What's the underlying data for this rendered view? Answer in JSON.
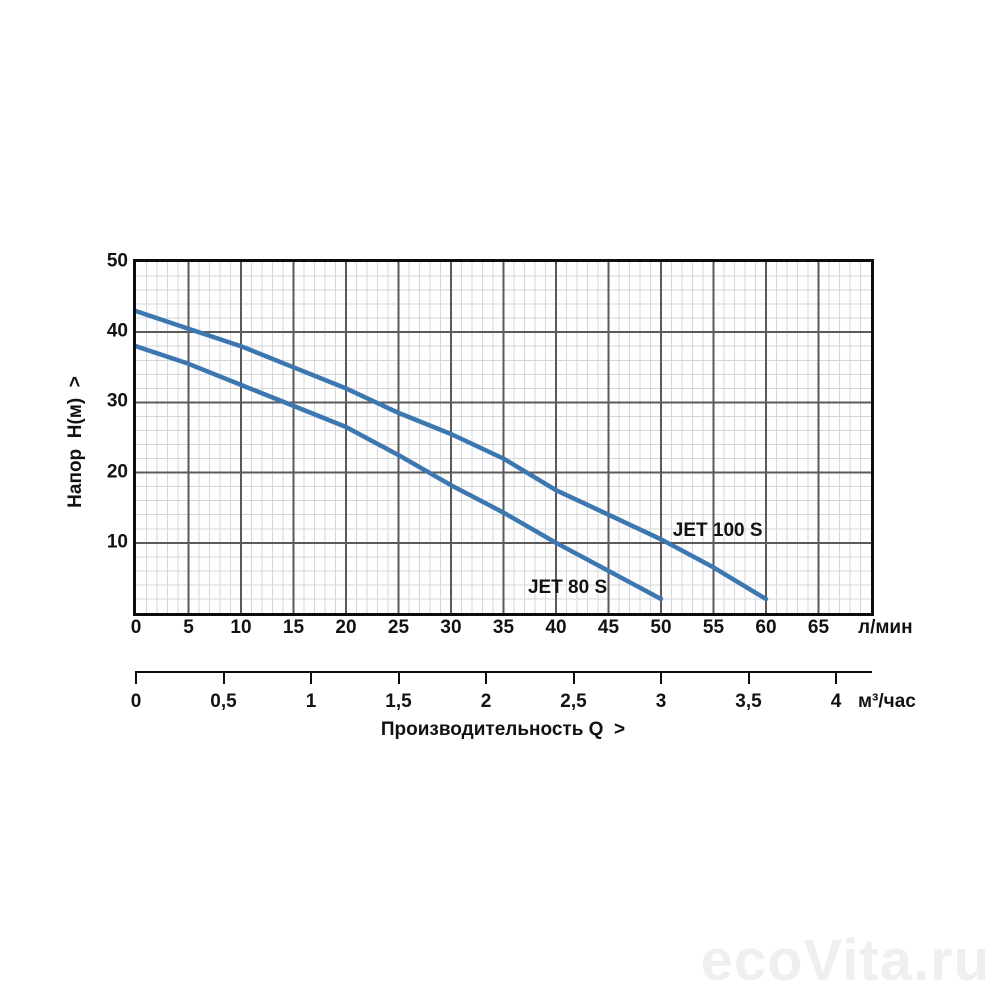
{
  "watermark": {
    "text": "ecoVita.ru"
  },
  "chart_data": {
    "type": "line",
    "title": "",
    "x_axis": {
      "unit": "л/мин",
      "min": 0,
      "max": 70,
      "major_step": 5,
      "minor_step": 1,
      "ticks": [
        0,
        5,
        10,
        15,
        20,
        25,
        30,
        35,
        40,
        45,
        50,
        55,
        60,
        65
      ]
    },
    "x_axis_secondary": {
      "unit": "м³/час",
      "title": "Производительность Q  >",
      "min": 0,
      "max": 4,
      "tick_values": [
        0,
        0.5,
        1,
        1.5,
        2,
        2.5,
        3,
        3.5,
        4
      ],
      "tick_labels": [
        "0",
        "0,5",
        "1",
        "1,5",
        "2",
        "2,5",
        "3",
        "3,5",
        "4"
      ],
      "lpm_per_unit": 16.6667
    },
    "y_axis": {
      "title": "Напор  Н(м)  >",
      "min": 0,
      "max": 50,
      "major_step": 10,
      "minor_step": 2,
      "ticks": [
        50,
        40,
        30,
        20,
        10
      ]
    },
    "grid": {
      "minor_color": "#d4d7da",
      "major_color": "#5a5a5a",
      "border_color": "#0d0d0d"
    },
    "series": [
      {
        "name": "JET 100 S",
        "label": "JET 100 S",
        "color": "#3c77b0",
        "label_anchor": {
          "q": 55.4,
          "h": 11.7
        },
        "points": [
          [
            0,
            43
          ],
          [
            5,
            40.5
          ],
          [
            10,
            38
          ],
          [
            15,
            35
          ],
          [
            20,
            32
          ],
          [
            25,
            28.5
          ],
          [
            30,
            25.5
          ],
          [
            35,
            22
          ],
          [
            40,
            17.5
          ],
          [
            45,
            14
          ],
          [
            50,
            10.5
          ],
          [
            55,
            6.5
          ],
          [
            60,
            2
          ]
        ]
      },
      {
        "name": "JET 80 S",
        "label": "JET 80 S",
        "color": "#3c77b0",
        "label_anchor": {
          "q": 41.1,
          "h": 3.6
        },
        "points": [
          [
            0,
            38
          ],
          [
            5,
            35.5
          ],
          [
            10,
            32.5
          ],
          [
            15,
            29.5
          ],
          [
            20,
            26.5
          ],
          [
            25,
            22.5
          ],
          [
            30,
            18.2
          ],
          [
            35,
            14.3
          ],
          [
            40,
            10
          ],
          [
            45,
            6
          ],
          [
            50,
            2
          ]
        ]
      }
    ]
  }
}
